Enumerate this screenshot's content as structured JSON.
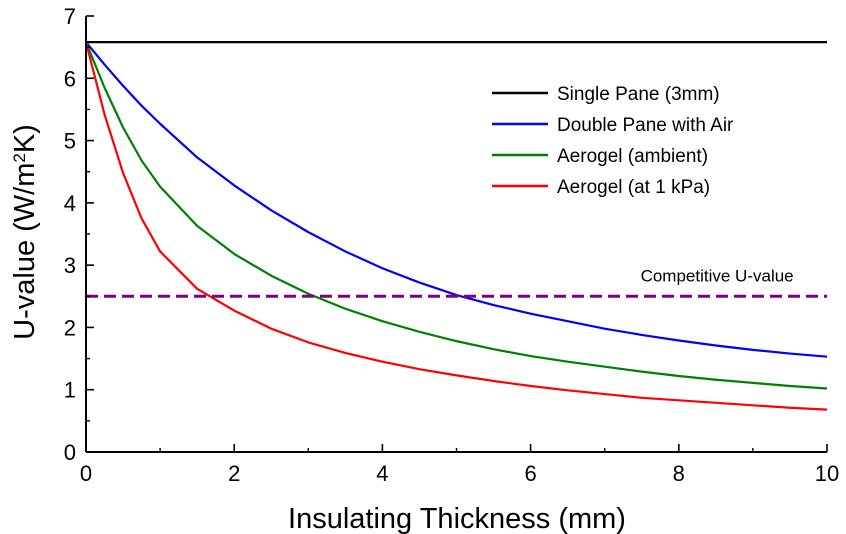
{
  "chart_data": {
    "type": "line",
    "title": "",
    "xlabel": "Insulating Thickness (mm)",
    "ylabel_main": "U-value (W/m",
    "ylabel_sup": "2",
    "ylabel_end": "K)",
    "xlim": [
      0,
      10
    ],
    "ylim": [
      0,
      7
    ],
    "x_ticks": [
      0,
      2,
      4,
      6,
      8,
      10
    ],
    "y_ticks": [
      0,
      1,
      2,
      3,
      4,
      5,
      6,
      7
    ],
    "x_tick_labels": [
      "0",
      "2",
      "4",
      "6",
      "8",
      "10"
    ],
    "y_tick_labels": [
      "0",
      "1",
      "2",
      "3",
      "4",
      "5",
      "6",
      "7"
    ],
    "grid": false,
    "legend_position": "top-right",
    "series": [
      {
        "name": "Single Pane (3mm)",
        "color": "#000000",
        "x": [
          0,
          10
        ],
        "y": [
          6.58,
          6.58
        ]
      },
      {
        "name": "Double Pane with Air",
        "color": "#0000ff",
        "x": [
          0,
          0.25,
          0.5,
          0.75,
          1,
          1.5,
          2,
          2.5,
          3,
          3.5,
          4,
          4.5,
          5,
          5.5,
          6,
          6.5,
          7,
          7.5,
          8,
          8.5,
          9,
          9.5,
          10
        ],
        "y": [
          6.58,
          6.22,
          5.88,
          5.56,
          5.27,
          4.73,
          4.28,
          3.88,
          3.53,
          3.22,
          2.95,
          2.72,
          2.52,
          2.36,
          2.22,
          2.1,
          1.98,
          1.88,
          1.79,
          1.71,
          1.64,
          1.58,
          1.53
        ]
      },
      {
        "name": "Aerogel (ambient)",
        "color": "#008000",
        "x": [
          0,
          0.25,
          0.5,
          0.75,
          1,
          1.5,
          2,
          2.5,
          3,
          3.5,
          4,
          4.5,
          5,
          5.5,
          6,
          6.5,
          7,
          7.5,
          8,
          8.5,
          9,
          9.5,
          10
        ],
        "y": [
          6.58,
          5.85,
          5.21,
          4.68,
          4.26,
          3.63,
          3.18,
          2.83,
          2.54,
          2.3,
          2.1,
          1.93,
          1.78,
          1.65,
          1.54,
          1.45,
          1.37,
          1.29,
          1.22,
          1.16,
          1.11,
          1.06,
          1.02
        ]
      },
      {
        "name": "Aerogel (at 1 kPa)",
        "color": "#ff0000",
        "x": [
          0,
          0.25,
          0.5,
          0.75,
          1,
          1.5,
          2,
          2.5,
          3,
          3.5,
          4,
          4.5,
          5,
          5.5,
          6,
          6.5,
          7,
          7.5,
          8,
          8.5,
          9,
          9.5,
          10
        ],
        "y": [
          6.58,
          5.42,
          4.48,
          3.75,
          3.22,
          2.62,
          2.27,
          1.98,
          1.76,
          1.59,
          1.45,
          1.33,
          1.23,
          1.14,
          1.06,
          0.99,
          0.93,
          0.87,
          0.83,
          0.79,
          0.75,
          0.71,
          0.68
        ]
      },
      {
        "name": "Competitive U-value",
        "color": "#800080",
        "dashed": true,
        "x": [
          0,
          10
        ],
        "y": [
          2.5,
          2.5
        ]
      }
    ],
    "annotations": [
      {
        "text": "Competitive U-value",
        "x": 9.55,
        "y": 2.74
      }
    ]
  }
}
